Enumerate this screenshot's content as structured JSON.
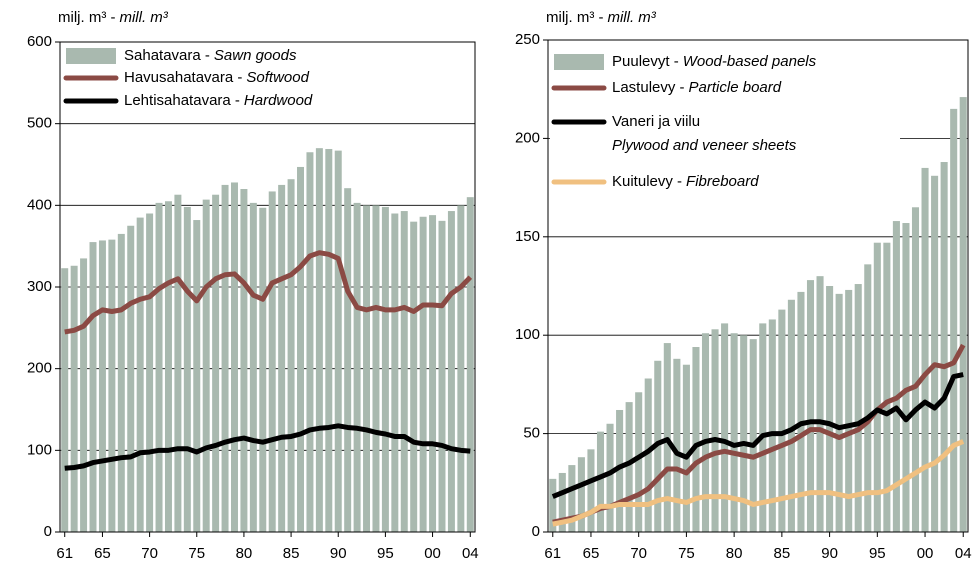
{
  "chart_data": [
    {
      "type": "bar",
      "unit": "milj. m³ -",
      "unit_en": "mill. m³",
      "categories": [
        "61",
        null,
        null,
        null,
        "65",
        null,
        null,
        null,
        null,
        "70",
        null,
        null,
        null,
        null,
        "75",
        null,
        null,
        null,
        null,
        "80",
        null,
        null,
        null,
        null,
        "85",
        null,
        null,
        null,
        null,
        "90",
        null,
        null,
        null,
        null,
        "95",
        null,
        null,
        null,
        null,
        "00",
        null,
        null,
        null,
        "04"
      ],
      "ylim": [
        0,
        600
      ],
      "yticks": [
        0,
        100,
        200,
        300,
        400,
        500,
        600
      ],
      "grid": true,
      "series": [
        {
          "name": "Sahatavara -",
          "name_en": "Sawn goods",
          "type": "bar",
          "color": "#a9b9af",
          "values": [
            323,
            326,
            335,
            355,
            357,
            358,
            365,
            375,
            385,
            390,
            403,
            405,
            413,
            398,
            382,
            407,
            413,
            425,
            428,
            420,
            403,
            397,
            417,
            425,
            432,
            447,
            465,
            470,
            469,
            467,
            421,
            403,
            400,
            400,
            398,
            390,
            393,
            380,
            386,
            388,
            381,
            393,
            400,
            410
          ]
        },
        {
          "name": "Havusahatavara -",
          "name_en": "Softwood",
          "type": "line",
          "color": "#8b4a44",
          "values": [
            245,
            247,
            252,
            265,
            272,
            270,
            272,
            280,
            285,
            288,
            298,
            305,
            310,
            295,
            283,
            300,
            310,
            315,
            316,
            305,
            290,
            285,
            305,
            310,
            315,
            325,
            338,
            342,
            340,
            335,
            295,
            275,
            272,
            275,
            272,
            272,
            275,
            270,
            278,
            278,
            277,
            292,
            300,
            312
          ]
        },
        {
          "name": "Lehtisahatavara -",
          "name_en": "Hardwood",
          "type": "line",
          "color": "#000000",
          "values": [
            78,
            79,
            81,
            85,
            87,
            89,
            91,
            92,
            97,
            98,
            100,
            100,
            102,
            102,
            98,
            103,
            106,
            110,
            113,
            115,
            112,
            110,
            113,
            116,
            117,
            120,
            125,
            127,
            128,
            130,
            128,
            127,
            125,
            122,
            120,
            117,
            117,
            110,
            108,
            108,
            106,
            102,
            100,
            99
          ]
        }
      ]
    },
    {
      "type": "bar",
      "unit": "milj. m³ -",
      "unit_en": "mill. m³",
      "categories": [
        "61",
        null,
        null,
        null,
        "65",
        null,
        null,
        null,
        null,
        "70",
        null,
        null,
        null,
        null,
        "75",
        null,
        null,
        null,
        null,
        "80",
        null,
        null,
        null,
        null,
        "85",
        null,
        null,
        null,
        null,
        "90",
        null,
        null,
        null,
        null,
        "95",
        null,
        null,
        null,
        null,
        "00",
        null,
        null,
        null,
        "04"
      ],
      "ylim": [
        0,
        250
      ],
      "yticks": [
        0,
        50,
        100,
        150,
        200,
        250
      ],
      "grid": true,
      "series": [
        {
          "name": "Puulevyt -",
          "name_en": "Wood-based panels",
          "type": "bar",
          "color": "#a9b9af",
          "values": [
            27,
            30,
            34,
            38,
            42,
            51,
            55,
            62,
            66,
            71,
            78,
            87,
            96,
            88,
            85,
            94,
            101,
            103,
            106,
            101,
            100,
            98,
            106,
            108,
            113,
            118,
            122,
            128,
            130,
            125,
            121,
            123,
            126,
            136,
            147,
            147,
            158,
            157,
            165,
            185,
            181,
            188,
            215,
            221
          ]
        },
        {
          "name": "Lastulevy -",
          "name_en": "Particle board",
          "type": "line",
          "color": "#8b4a44",
          "values": [
            5,
            6,
            7,
            8,
            10,
            12,
            13,
            15,
            17,
            19,
            22,
            27,
            32,
            32,
            30,
            35,
            38,
            40,
            41,
            40,
            39,
            38,
            40,
            42,
            44,
            46,
            49,
            52,
            52,
            50,
            48,
            50,
            52,
            56,
            62,
            66,
            68,
            72,
            74,
            80,
            85,
            84,
            86,
            95
          ]
        },
        {
          "name": "Vaneri ja viilu",
          "name_en": "Plywood and veneer sheets",
          "type": "line",
          "color": "#000000",
          "values": [
            18,
            20,
            22,
            24,
            26,
            28,
            30,
            33,
            35,
            38,
            41,
            45,
            47,
            40,
            38,
            44,
            46,
            47,
            46,
            44,
            45,
            44,
            49,
            50,
            50,
            52,
            55,
            56,
            56,
            55,
            53,
            54,
            55,
            58,
            62,
            60,
            63,
            57,
            62,
            66,
            63,
            68,
            79,
            80
          ]
        },
        {
          "name": "Kuitulevy -",
          "name_en": "Fibreboard",
          "type": "line",
          "color": "#f0c080",
          "values": [
            4,
            5,
            6,
            8,
            10,
            13,
            13,
            14,
            14,
            14,
            14,
            16,
            17,
            16,
            15,
            17,
            18,
            18,
            18,
            17,
            16,
            14,
            15,
            16,
            17,
            18,
            19,
            20,
            20,
            20,
            19,
            18,
            19,
            20,
            20,
            21,
            24,
            27,
            30,
            33,
            35,
            39,
            44,
            46
          ]
        }
      ]
    }
  ]
}
